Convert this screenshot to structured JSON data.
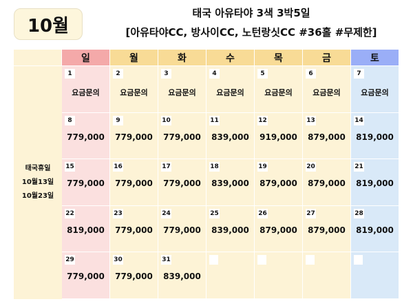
{
  "header": {
    "month": "10월",
    "title_line1": "태국 아유타야 3색 3박5일",
    "title_line2": "[아유타야CC, 방사이CC, 노턴랑싯CC #36홀 #무제한]"
  },
  "calendar": {
    "weekdays": [
      "일",
      "월",
      "화",
      "수",
      "목",
      "금",
      "토"
    ],
    "side_note": [
      "태국휴일",
      "10월13일",
      "10월23일"
    ],
    "colors": {
      "sun_header": "#f4a9a9",
      "weekday_header": "#f8db96",
      "sat_header": "#9aaef7",
      "sun_cell": "#fbe0df",
      "weekday_cell": "#fdf3d6",
      "sat_cell": "#d9e9f8"
    },
    "weeks": [
      [
        {
          "day": "1",
          "price": "요금문의"
        },
        {
          "day": "2",
          "price": "요금문의"
        },
        {
          "day": "3",
          "price": "요금문의"
        },
        {
          "day": "4",
          "price": "요금문의"
        },
        {
          "day": "5",
          "price": "요금문의"
        },
        {
          "day": "6",
          "price": "요금문의"
        },
        {
          "day": "7",
          "price": "요금문의"
        }
      ],
      [
        {
          "day": "8",
          "price": "779,000"
        },
        {
          "day": "9",
          "price": "779,000"
        },
        {
          "day": "10",
          "price": "779,000"
        },
        {
          "day": "11",
          "price": "839,000"
        },
        {
          "day": "12",
          "price": "919,000"
        },
        {
          "day": "13",
          "price": "879,000"
        },
        {
          "day": "14",
          "price": "819,000"
        }
      ],
      [
        {
          "day": "15",
          "price": "779,000"
        },
        {
          "day": "16",
          "price": "779,000"
        },
        {
          "day": "17",
          "price": "779,000"
        },
        {
          "day": "18",
          "price": "839,000"
        },
        {
          "day": "19",
          "price": "879,000"
        },
        {
          "day": "20",
          "price": "879,000"
        },
        {
          "day": "21",
          "price": "819,000"
        }
      ],
      [
        {
          "day": "22",
          "price": "819,000"
        },
        {
          "day": "23",
          "price": "779,000"
        },
        {
          "day": "24",
          "price": "779,000"
        },
        {
          "day": "25",
          "price": "839,000"
        },
        {
          "day": "26",
          "price": "879,000"
        },
        {
          "day": "27",
          "price": "879,000"
        },
        {
          "day": "28",
          "price": "819,000"
        }
      ],
      [
        {
          "day": "29",
          "price": "779,000"
        },
        {
          "day": "30",
          "price": "779,000"
        },
        {
          "day": "31",
          "price": "839,000"
        },
        {
          "day": "",
          "price": ""
        },
        {
          "day": "",
          "price": ""
        },
        {
          "day": "",
          "price": ""
        },
        {
          "day": "",
          "price": ""
        }
      ]
    ]
  }
}
